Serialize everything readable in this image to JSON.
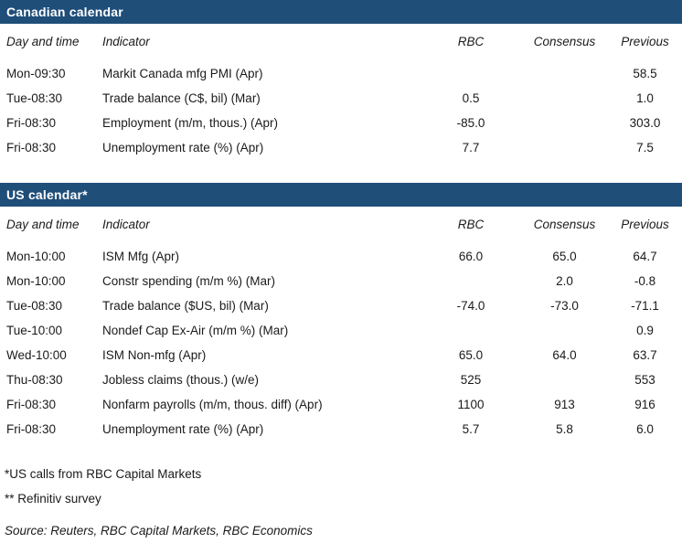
{
  "colors": {
    "header_bar_blue": "#1f4e79",
    "bar_text": "#ffffff",
    "body_text": "#1a1a1a"
  },
  "columns": {
    "day": "Day and time",
    "indicator": "Indicator",
    "rbc": "RBC",
    "consensus": "Consensus",
    "previous": "Previous"
  },
  "tables": [
    {
      "title": "Canadian calendar",
      "rows": [
        {
          "day": "Mon-09:30",
          "indicator": "Markit Canada mfg PMI (Apr)",
          "rbc": "",
          "consensus": "",
          "previous": "58.5"
        },
        {
          "day": "Tue-08:30",
          "indicator": "Trade balance (C$, bil) (Mar)",
          "rbc": "0.5",
          "consensus": "",
          "previous": "1.0"
        },
        {
          "day": "Fri-08:30",
          "indicator": "Employment (m/m, thous.) (Apr)",
          "rbc": "-85.0",
          "consensus": "",
          "previous": "303.0"
        },
        {
          "day": "Fri-08:30",
          "indicator": "Unemployment rate (%) (Apr)",
          "rbc": "7.7",
          "consensus": "",
          "previous": "7.5"
        }
      ]
    },
    {
      "title": "US calendar*",
      "rows": [
        {
          "day": "Mon-10:00",
          "indicator": "ISM Mfg (Apr)",
          "rbc": "66.0",
          "consensus": "65.0",
          "previous": "64.7"
        },
        {
          "day": "Mon-10:00",
          "indicator": "Constr spending (m/m %) (Mar)",
          "rbc": "",
          "consensus": "2.0",
          "previous": "-0.8"
        },
        {
          "day": "Tue-08:30",
          "indicator": "Trade balance ($US, bil) (Mar)",
          "rbc": "-74.0",
          "consensus": "-73.0",
          "previous": "-71.1"
        },
        {
          "day": "Tue-10:00",
          "indicator": "Nondef Cap Ex-Air (m/m %) (Mar)",
          "rbc": "",
          "consensus": "",
          "previous": "0.9"
        },
        {
          "day": "Wed-10:00",
          "indicator": "ISM Non-mfg (Apr)",
          "rbc": "65.0",
          "consensus": "64.0",
          "previous": "63.7"
        },
        {
          "day": "Thu-08:30",
          "indicator": "Jobless claims (thous.) (w/e)",
          "rbc": "525",
          "consensus": "",
          "previous": "553"
        },
        {
          "day": "Fri-08:30",
          "indicator": "Nonfarm payrolls (m/m, thous. diff) (Apr)",
          "rbc": "1100",
          "consensus": "913",
          "previous": "916"
        },
        {
          "day": "Fri-08:30",
          "indicator": "Unemployment rate (%) (Apr)",
          "rbc": "5.7",
          "consensus": "5.8",
          "previous": "6.0"
        }
      ]
    }
  ],
  "footnotes": [
    "*US calls from RBC Capital Markets",
    "** Refinitiv survey"
  ],
  "source": "Source: Reuters, RBC Capital Markets, RBC Economics"
}
